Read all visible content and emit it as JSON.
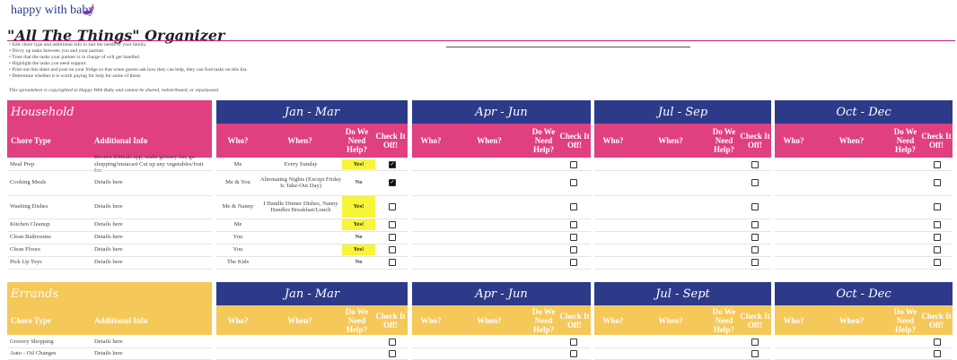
{
  "brand": "happy with baby",
  "title": "\"All The Things\" Organizer",
  "notes": [
    "• Edit chore type and additional info to suit the needs of your family.",
    "• Divvy up tasks between you and your partner.",
    "• Trust that the tasks your partner is in charge of will get handled.",
    "• Highlight the tasks you need support.",
    "• Print out this sheet and post on your fridge so that when guests ask how they can help, they can find tasks on this list.",
    "• Determine whether it is worth paying for help for some of these."
  ],
  "copyright": "This spreadsheet is copyrighted to Happy With Baby and cannot be shared, redistributed, or repurposed.",
  "colors": {
    "pink": "#e0407f",
    "navy": "#2d3a8a",
    "gold": "#f5c85a",
    "yes": "#f7f43a"
  },
  "household": {
    "section": "Household",
    "col_chore": "Chore Type",
    "col_info": "Additional Info",
    "quarters": [
      "Jan - Mar",
      "Apr - Jun",
      "Jul - Sep",
      "Oct - Dec"
    ],
    "sub": {
      "who": "Who?",
      "when": "When?",
      "help": "Do We Need Help?",
      "check": "Check It Off!"
    },
    "rows": [
      {
        "chore": "Meal Prep",
        "info": "Review EMeals app, make grocery list, go shopping/instacart Cut up any vegetables/fruit for",
        "who": "Me",
        "when": "Every Sunday",
        "help": "Yes!",
        "checked": true
      },
      {
        "chore": "Cooking Meals",
        "info": "Details here",
        "who": "Me & You",
        "when": "Alternating Nights (Except Friday Is Take-Out Day)",
        "help": "No",
        "checked": true
      },
      {
        "chore": "Washing Dishes",
        "info": "Details here",
        "who": "Me & Nanny",
        "when": "I Handle Dinner Dishes, Nanny Handles Breakfast/Lunch",
        "help": "Yes!",
        "checked": false
      },
      {
        "chore": "Kitchen Cleanup",
        "info": "Details here",
        "who": "Me",
        "when": "",
        "help": "Yes!",
        "checked": false
      },
      {
        "chore": "Clean Bathrooms",
        "info": "Details here",
        "who": "You",
        "when": "",
        "help": "No",
        "checked": false
      },
      {
        "chore": "Clean Floors",
        "info": "Details here",
        "who": "You",
        "when": "",
        "help": "Yes!",
        "checked": false
      },
      {
        "chore": "Pick Up Toys",
        "info": "Details here",
        "who": "The Kids",
        "when": "",
        "help": "No",
        "checked": false
      }
    ]
  },
  "errands": {
    "section": "Errands",
    "col_chore": "Chore Type",
    "col_info": "Additional Info",
    "quarters": [
      "Jan - Mar",
      "Apr - Jun",
      "Jul - Sept",
      "Oct - Dec"
    ],
    "sub": {
      "who": "Who?",
      "when": "When?",
      "help": "Do We Need Help?",
      "check": "Check It Off!"
    },
    "rows": [
      {
        "chore": "Grocery Shopping",
        "info": "Details here"
      },
      {
        "chore": "Auto - Oil Changes",
        "info": "Details here"
      }
    ]
  }
}
